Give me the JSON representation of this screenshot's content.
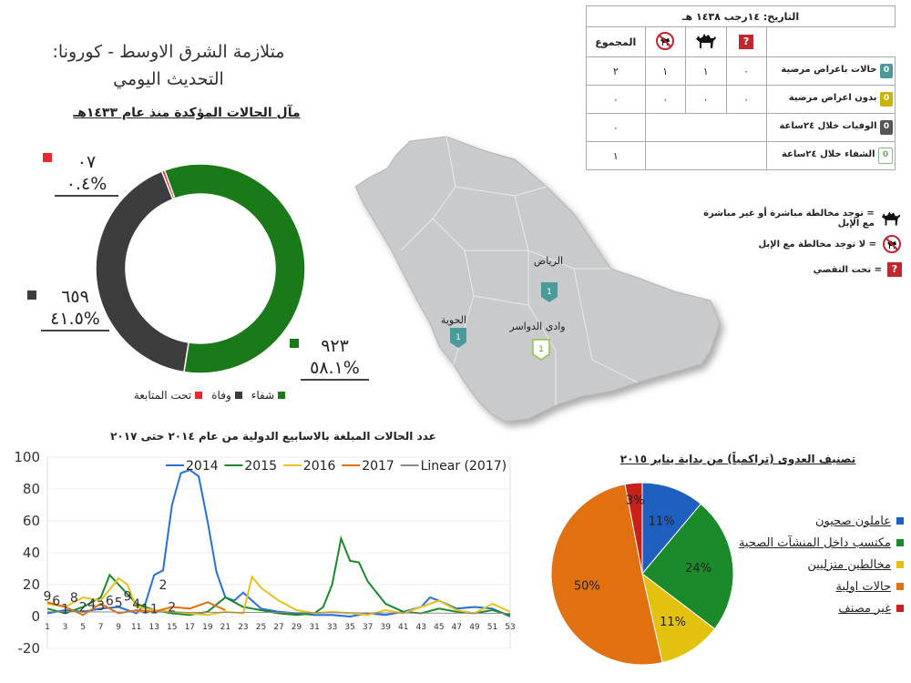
{
  "title": {
    "line1": "متلازمة الشرق الاوسط - كورونا:",
    "line2": "التحديث اليومي"
  },
  "donut": {
    "heading": "مآل الحالات المؤكدة منذ عام ١٤٣٣هـ",
    "segments": [
      {
        "name": "شفاء",
        "value": 923,
        "label": "٩٢٣",
        "pct": "٥٨.١%",
        "color": "#1a7a1a"
      },
      {
        "name": "وفاة",
        "value": 659,
        "label": "٦٥٩",
        "pct": "٤١.٥%",
        "color": "#3d3d3d"
      },
      {
        "name": "تحت المتابعة",
        "value": 7,
        "label": "٠٧",
        "pct": "٠.٤%",
        "color": "#e8282e"
      }
    ]
  },
  "info_table": {
    "date": "التاريخ: ١٤رجب ١٤٣٨ هـ",
    "total_label": "المجموع",
    "rows": [
      {
        "label": "حالات باعراض مرضية",
        "icon_color": "#4a9a9a",
        "count": "0",
        "total": "٢",
        "vals": [
          "٠",
          "١",
          "١"
        ]
      },
      {
        "label": "بدون اعراض مرضية",
        "icon_color": "#c8b400",
        "count": "0",
        "total": "٠",
        "vals": [
          "٠",
          "٠",
          "٠"
        ]
      },
      {
        "label": "الوفيات خلال ٢٤ساعة",
        "icon_color": "#555555",
        "count": "0",
        "total": "٠"
      },
      {
        "label": "الشفاء خلال ٢٤ساعة",
        "icon_color": "#ffffff",
        "count": "0",
        "total": "١"
      }
    ]
  },
  "legend_right": {
    "camel": "= توجد مخالطة مباشرة أو غير مباشرة مع الإبل",
    "no_camel": "= لا توجد مخالطة مع الإبل",
    "question": "= تحت التقصي",
    "q_glyph": "?"
  },
  "map": {
    "places": [
      {
        "name": "الرياض",
        "count": "1"
      },
      {
        "name": "وادي الدواسر",
        "count": "1"
      },
      {
        "name": "الحوية",
        "count": "1"
      }
    ]
  },
  "line_chart_title": "عدد الحالات المبلغة بالاسابيع الدولية من عام ٢٠١٤ حتى ٢٠١٧",
  "pie": {
    "title": "تصنيف العدوى (تراكمياً) من بداية يناير ٢٠١٥",
    "slices": [
      {
        "name": "عاملون صحيون",
        "value": 11,
        "label": "11%",
        "color": "#1f5fbf"
      },
      {
        "name": "مكتسب داخل المنشآت الصحية",
        "value": 24,
        "label": "24%",
        "color": "#1a8a2a"
      },
      {
        "name": "مخالطين منزليين",
        "value": 11,
        "label": "11%",
        "color": "#e2c20e"
      },
      {
        "name": "حالات اولية",
        "value": 50,
        "label": "50%",
        "color": "#e07010"
      },
      {
        "name": "غير مصنف",
        "value": 3,
        "label": "3%",
        "color": "#c8201a"
      }
    ]
  },
  "chart_data": [
    {
      "type": "pie",
      "title": "مآل الحالات المؤكدة منذ عام ١٤٣٣هـ",
      "categories": [
        "شفاء",
        "وفاة",
        "تحت المتابعة"
      ],
      "values": [
        923,
        659,
        7
      ]
    },
    {
      "type": "line",
      "title": "عدد الحالات المبلغة بالاسابيع الدولية من عام ٢٠١٤ حتى ٢٠١٧",
      "ylim": [
        -20,
        100
      ],
      "yticks": [
        -20,
        0,
        20,
        40,
        60,
        80,
        100
      ],
      "xticks": [
        1,
        3,
        5,
        7,
        9,
        11,
        13,
        15,
        17,
        19,
        21,
        23,
        25,
        27,
        29,
        31,
        33,
        35,
        37,
        39,
        41,
        43,
        45,
        47,
        49,
        51,
        53
      ],
      "legend_position": "top",
      "series": [
        {
          "name": "2014",
          "color": "#2a6fd6",
          "x": [
            1,
            3,
            5,
            7,
            9,
            11,
            12,
            13,
            14,
            15,
            16,
            17,
            18,
            19,
            20,
            21,
            22,
            23,
            25,
            27,
            29,
            31,
            33,
            35,
            37,
            39,
            41,
            43,
            44,
            45,
            47,
            49,
            51,
            53
          ],
          "y": [
            2,
            4,
            3,
            5,
            6,
            2,
            8,
            26,
            29,
            70,
            90,
            92,
            88,
            60,
            28,
            12,
            10,
            15,
            5,
            3,
            2,
            1,
            1,
            0,
            2,
            1,
            3,
            6,
            12,
            10,
            5,
            6,
            5,
            0
          ]
        },
        {
          "name": "2015",
          "color": "#1a8a2a",
          "x": [
            1,
            3,
            5,
            7,
            8,
            9,
            11,
            13,
            15,
            17,
            19,
            21,
            23,
            25,
            27,
            29,
            31,
            32,
            33,
            34,
            35,
            36,
            37,
            39,
            41,
            43,
            45,
            47,
            49,
            51,
            53
          ],
          "y": [
            5,
            2,
            6,
            12,
            26,
            20,
            8,
            4,
            2,
            1,
            3,
            12,
            6,
            4,
            2,
            1,
            2,
            6,
            20,
            49,
            35,
            34,
            22,
            8,
            3,
            2,
            5,
            3,
            2,
            4,
            1
          ]
        },
        {
          "name": "2016",
          "color": "#e6c21e",
          "x": [
            1,
            3,
            5,
            7,
            9,
            10,
            11,
            13,
            15,
            17,
            19,
            21,
            23,
            24,
            25,
            27,
            29,
            31,
            33,
            35,
            37,
            39,
            41,
            43,
            45,
            47,
            49,
            51,
            53
          ],
          "y": [
            8,
            6,
            12,
            10,
            24,
            20,
            6,
            4,
            3,
            2,
            1,
            3,
            2,
            25,
            18,
            10,
            4,
            2,
            3,
            2,
            1,
            4,
            2,
            6,
            10,
            4,
            2,
            8,
            3
          ]
        },
        {
          "name": "2017",
          "color": "#e07010",
          "x": [
            1,
            3,
            5,
            7,
            9,
            11,
            13,
            15,
            17,
            19,
            21
          ],
          "y": [
            9,
            6,
            1,
            8,
            2,
            4,
            3,
            6,
            5,
            9,
            4
          ]
        },
        {
          "name": "Linear (2017)",
          "color": "#8a8a8a",
          "x": [
            1,
            53
          ],
          "y": [
            3,
            2
          ]
        }
      ],
      "data_labels": [
        {
          "x": 1,
          "y": 9,
          "text": "9"
        },
        {
          "x": 2,
          "y": 6,
          "text": "6"
        },
        {
          "x": 3,
          "y": 1,
          "text": "1"
        },
        {
          "x": 4,
          "y": 8,
          "text": "8"
        },
        {
          "x": 5,
          "y": 2,
          "text": "2"
        },
        {
          "x": 6,
          "y": 4,
          "text": "4"
        },
        {
          "x": 7,
          "y": 3,
          "text": "3"
        },
        {
          "x": 8,
          "y": 6,
          "text": "6"
        },
        {
          "x": 9,
          "y": 5,
          "text": "5"
        },
        {
          "x": 10,
          "y": 9,
          "text": "9"
        },
        {
          "x": 11,
          "y": 4,
          "text": "4"
        },
        {
          "x": 12,
          "y": 1,
          "text": "1"
        },
        {
          "x": 13,
          "y": 1,
          "text": "1"
        },
        {
          "x": 15,
          "y": 2,
          "text": "2"
        },
        {
          "x": 14,
          "y": 16,
          "text": "2"
        }
      ]
    },
    {
      "type": "pie",
      "title": "تصنيف العدوى (تراكمياً) من بداية يناير ٢٠١٥",
      "categories": [
        "عاملون صحيون",
        "مكتسب داخل المنشآت الصحية",
        "مخالطين منزليين",
        "حالات اولية",
        "غير مصنف"
      ],
      "values": [
        11,
        24,
        11,
        50,
        3
      ]
    }
  ]
}
